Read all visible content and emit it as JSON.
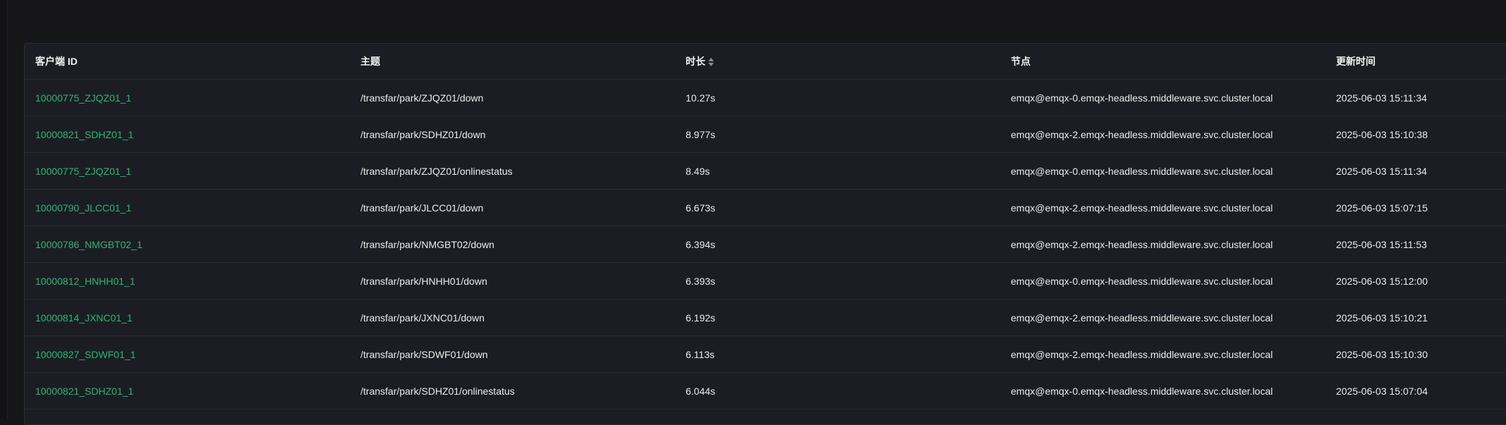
{
  "table": {
    "headers": {
      "client_id": "客户端 ID",
      "topic": "主题",
      "duration": "时长",
      "node": "节点",
      "updated_at": "更新时间"
    },
    "sort_icon": "sort-caret-icon",
    "rows": [
      {
        "client_id": "10000775_ZJQZ01_1",
        "topic": "/transfar/park/ZJQZ01/down",
        "duration": "10.27s",
        "node": "emqx@emqx-0.emqx-headless.middleware.svc.cluster.local",
        "updated_at": "2025-06-03 15:11:34"
      },
      {
        "client_id": "10000821_SDHZ01_1",
        "topic": "/transfar/park/SDHZ01/down",
        "duration": "8.977s",
        "node": "emqx@emqx-2.emqx-headless.middleware.svc.cluster.local",
        "updated_at": "2025-06-03 15:10:38"
      },
      {
        "client_id": "10000775_ZJQZ01_1",
        "topic": "/transfar/park/ZJQZ01/onlinestatus",
        "duration": "8.49s",
        "node": "emqx@emqx-0.emqx-headless.middleware.svc.cluster.local",
        "updated_at": "2025-06-03 15:11:34"
      },
      {
        "client_id": "10000790_JLCC01_1",
        "topic": "/transfar/park/JLCC01/down",
        "duration": "6.673s",
        "node": "emqx@emqx-2.emqx-headless.middleware.svc.cluster.local",
        "updated_at": "2025-06-03 15:07:15"
      },
      {
        "client_id": "10000786_NMGBT02_1",
        "topic": "/transfar/park/NMGBT02/down",
        "duration": "6.394s",
        "node": "emqx@emqx-2.emqx-headless.middleware.svc.cluster.local",
        "updated_at": "2025-06-03 15:11:53"
      },
      {
        "client_id": "10000812_HNHH01_1",
        "topic": "/transfar/park/HNHH01/down",
        "duration": "6.393s",
        "node": "emqx@emqx-0.emqx-headless.middleware.svc.cluster.local",
        "updated_at": "2025-06-03 15:12:00"
      },
      {
        "client_id": "10000814_JXNC01_1",
        "topic": "/transfar/park/JXNC01/down",
        "duration": "6.192s",
        "node": "emqx@emqx-2.emqx-headless.middleware.svc.cluster.local",
        "updated_at": "2025-06-03 15:10:21"
      },
      {
        "client_id": "10000827_SDWF01_1",
        "topic": "/transfar/park/SDWF01/down",
        "duration": "6.113s",
        "node": "emqx@emqx-2.emqx-headless.middleware.svc.cluster.local",
        "updated_at": "2025-06-03 15:10:30"
      },
      {
        "client_id": "10000821_SDHZ01_1",
        "topic": "/transfar/park/SDHZ01/onlinestatus",
        "duration": "6.044s",
        "node": "emqx@emqx-0.emqx-headless.middleware.svc.cluster.local",
        "updated_at": "2025-06-03 15:07:04"
      }
    ]
  },
  "colors": {
    "background": "#161618",
    "panel": "#1c1d22",
    "link": "#26b77a",
    "text": "#ececec"
  }
}
